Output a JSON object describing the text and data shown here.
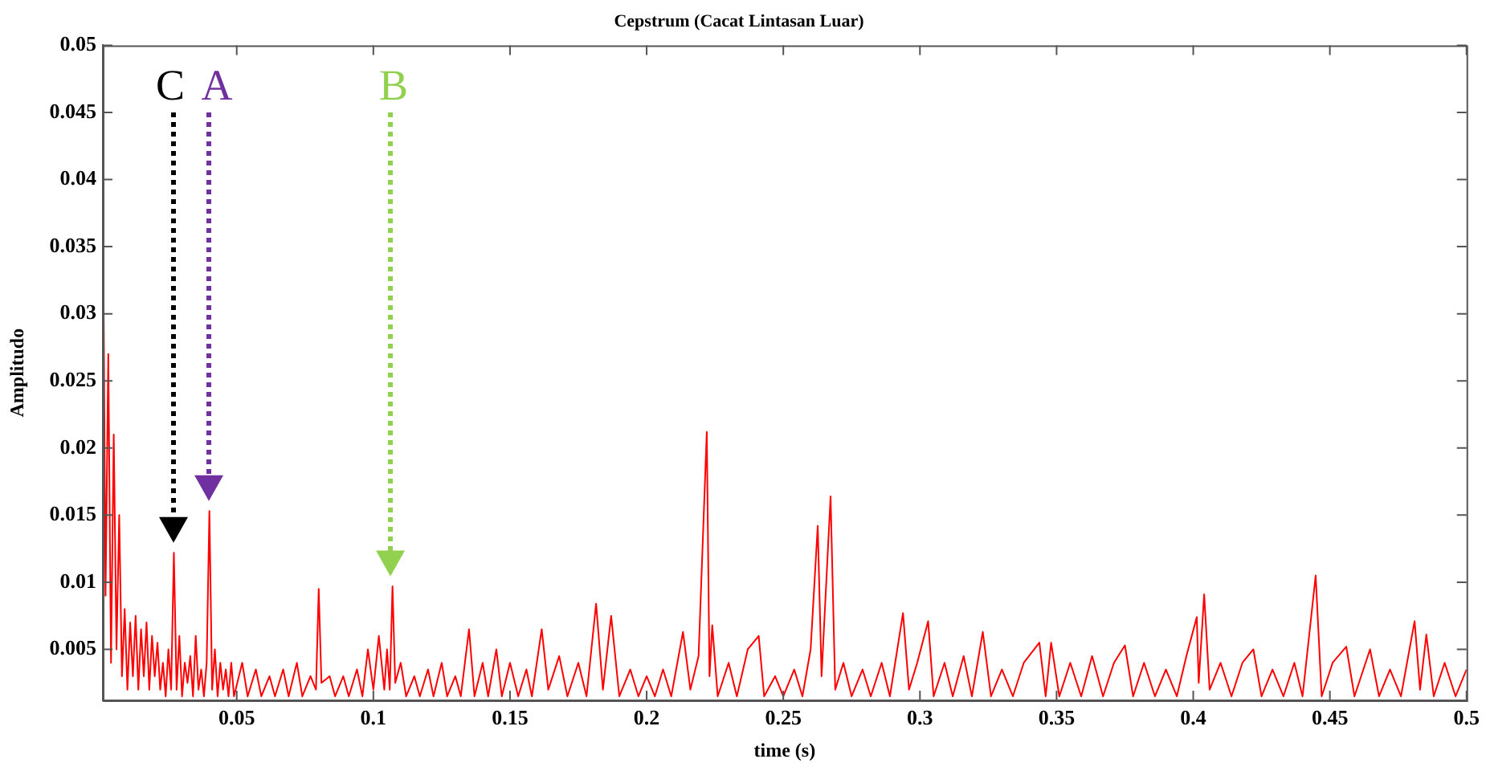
{
  "chart_data": {
    "type": "line",
    "title": "Cepstrum (Cacat Lintasan Luar)",
    "xlabel": "time (s)",
    "ylabel": "Amplitudo",
    "xlim": [
      0.001,
      0.5
    ],
    "xticks": [
      0.05,
      0.1,
      0.15,
      0.2,
      0.25,
      0.3,
      0.35,
      0.4,
      0.45,
      0.5
    ],
    "ylim": [
      0.0012,
      0.05
    ],
    "yticks": [
      0.005,
      0.01,
      0.015,
      0.02,
      0.025,
      0.03,
      0.035,
      0.04,
      0.045,
      0.05
    ],
    "marker": "none",
    "line_style": "solid",
    "annotations": [
      "C",
      "A",
      "B"
    ],
    "series": [
      {
        "color": "#ff0000",
        "x": [
          0.001,
          0.002,
          0.003,
          0.004,
          0.005,
          0.006,
          0.007,
          0.008,
          0.009,
          0.01,
          0.011,
          0.012,
          0.013,
          0.014,
          0.015,
          0.016,
          0.017,
          0.018,
          0.019,
          0.02,
          0.021,
          0.022,
          0.023,
          0.024,
          0.025,
          0.026,
          0.027,
          0.028,
          0.029,
          0.03,
          0.031,
          0.032,
          0.033,
          0.034,
          0.035,
          0.036,
          0.037,
          0.038,
          0.039,
          0.04,
          0.041,
          0.042,
          0.043,
          0.044,
          0.045,
          0.046,
          0.047,
          0.048,
          0.049,
          0.052,
          0.054,
          0.057,
          0.059,
          0.062,
          0.064,
          0.067,
          0.069,
          0.072,
          0.074,
          0.077,
          0.079,
          0.08,
          0.081,
          0.084,
          0.086,
          0.089,
          0.091,
          0.094,
          0.096,
          0.098,
          0.1,
          0.102,
          0.104,
          0.105,
          0.106,
          0.107,
          0.108,
          0.11,
          0.112,
          0.115,
          0.117,
          0.12,
          0.122,
          0.125,
          0.127,
          0.13,
          0.132,
          0.135,
          0.137,
          0.14,
          0.142,
          0.145,
          0.147,
          0.15,
          0.153,
          0.156,
          0.158,
          0.1616,
          0.164,
          0.168,
          0.171,
          0.175,
          0.178,
          0.1815,
          0.184,
          0.187,
          0.19,
          0.194,
          0.197,
          0.2,
          0.203,
          0.206,
          0.209,
          0.2133,
          0.216,
          0.219,
          0.222,
          0.223,
          0.224,
          0.226,
          0.23,
          0.233,
          0.237,
          0.241,
          0.243,
          0.247,
          0.25,
          0.254,
          0.257,
          0.26,
          0.2626,
          0.264,
          0.2673,
          0.269,
          0.272,
          0.275,
          0.279,
          0.282,
          0.286,
          0.289,
          0.2938,
          0.296,
          0.299,
          0.303,
          0.305,
          0.309,
          0.312,
          0.316,
          0.319,
          0.323,
          0.326,
          0.33,
          0.334,
          0.338,
          0.3437,
          0.346,
          0.348,
          0.351,
          0.355,
          0.359,
          0.363,
          0.367,
          0.371,
          0.375,
          0.378,
          0.382,
          0.386,
          0.39,
          0.394,
          0.3975,
          0.4013,
          0.402,
          0.404,
          0.406,
          0.41,
          0.414,
          0.418,
          0.422,
          0.425,
          0.429,
          0.433,
          0.437,
          0.44,
          0.4448,
          0.447,
          0.451,
          0.456,
          0.459,
          0.4647,
          0.468,
          0.472,
          0.476,
          0.481,
          0.483,
          0.4853,
          0.488,
          0.492,
          0.496,
          0.5
        ],
        "values": [
          0.04,
          0.009,
          0.027,
          0.004,
          0.021,
          0.005,
          0.015,
          0.003,
          0.008,
          0.002,
          0.007,
          0.003,
          0.0075,
          0.002,
          0.0065,
          0.003,
          0.007,
          0.002,
          0.006,
          0.003,
          0.0055,
          0.002,
          0.004,
          0.0015,
          0.005,
          0.002,
          0.0122,
          0.002,
          0.006,
          0.0015,
          0.004,
          0.0025,
          0.0045,
          0.0015,
          0.006,
          0.002,
          0.0035,
          0.0015,
          0.004,
          0.0153,
          0.002,
          0.005,
          0.0015,
          0.004,
          0.002,
          0.0035,
          0.0015,
          0.004,
          0.0015,
          0.004,
          0.0015,
          0.0035,
          0.0015,
          0.003,
          0.0015,
          0.0035,
          0.0015,
          0.004,
          0.0015,
          0.003,
          0.002,
          0.0095,
          0.0025,
          0.003,
          0.0015,
          0.003,
          0.0015,
          0.0035,
          0.0015,
          0.005,
          0.002,
          0.006,
          0.002,
          0.005,
          0.002,
          0.0097,
          0.0025,
          0.004,
          0.0015,
          0.003,
          0.0015,
          0.0035,
          0.0015,
          0.004,
          0.0015,
          0.003,
          0.0015,
          0.0065,
          0.0015,
          0.004,
          0.0015,
          0.005,
          0.0015,
          0.004,
          0.0015,
          0.0035,
          0.0015,
          0.0065,
          0.002,
          0.0045,
          0.0015,
          0.004,
          0.0015,
          0.0084,
          0.002,
          0.0075,
          0.0015,
          0.0035,
          0.0015,
          0.003,
          0.0015,
          0.0035,
          0.0015,
          0.0063,
          0.002,
          0.0045,
          0.0212,
          0.003,
          0.0068,
          0.0015,
          0.004,
          0.0015,
          0.005,
          0.006,
          0.0015,
          0.003,
          0.0015,
          0.0035,
          0.0015,
          0.005,
          0.0142,
          0.003,
          0.0164,
          0.002,
          0.004,
          0.0015,
          0.0035,
          0.0015,
          0.004,
          0.0015,
          0.0077,
          0.002,
          0.004,
          0.0071,
          0.0015,
          0.004,
          0.0015,
          0.0045,
          0.0015,
          0.0063,
          0.0015,
          0.0035,
          0.0015,
          0.004,
          0.0055,
          0.0015,
          0.0055,
          0.0015,
          0.004,
          0.0015,
          0.0045,
          0.0015,
          0.004,
          0.0053,
          0.0015,
          0.004,
          0.0015,
          0.0035,
          0.0015,
          0.0045,
          0.0074,
          0.0025,
          0.0091,
          0.002,
          0.004,
          0.0015,
          0.004,
          0.005,
          0.0015,
          0.0035,
          0.0015,
          0.004,
          0.0015,
          0.0105,
          0.0015,
          0.004,
          0.0052,
          0.0015,
          0.005,
          0.0015,
          0.0035,
          0.0015,
          0.0071,
          0.002,
          0.0061,
          0.0015,
          0.004,
          0.0015,
          0.0035
        ]
      }
    ]
  }
}
